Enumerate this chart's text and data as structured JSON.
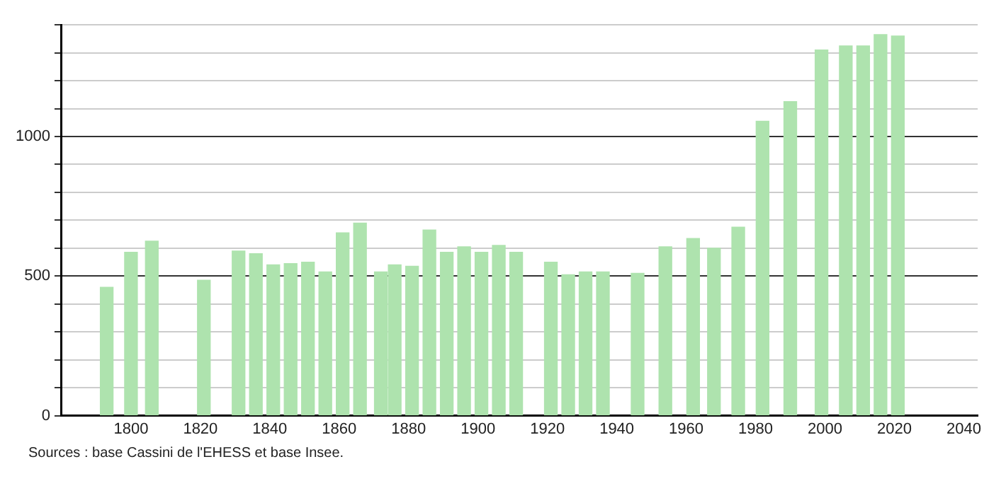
{
  "chart_data": {
    "type": "bar",
    "x": [
      1793,
      1800,
      1806,
      1821,
      1831,
      1836,
      1841,
      1846,
      1851,
      1856,
      1861,
      1866,
      1872,
      1876,
      1881,
      1886,
      1891,
      1896,
      1901,
      1906,
      1911,
      1921,
      1926,
      1931,
      1936,
      1946,
      1954,
      1962,
      1968,
      1975,
      1982,
      1990,
      1999,
      2006,
      2011,
      2016,
      2021
    ],
    "values": [
      460,
      585,
      625,
      485,
      590,
      580,
      540,
      545,
      550,
      515,
      655,
      690,
      515,
      540,
      535,
      665,
      585,
      605,
      585,
      610,
      585,
      550,
      505,
      515,
      515,
      510,
      605,
      635,
      600,
      675,
      1055,
      1125,
      1310,
      1325,
      1325,
      1365,
      1360
    ],
    "color": "#aee3ae",
    "xlim": [
      1780,
      2044
    ],
    "xticks": [
      1800,
      1820,
      1840,
      1860,
      1880,
      1900,
      1920,
      1940,
      1960,
      1980,
      2000,
      2020,
      2040
    ],
    "ylim": [
      0,
      1400
    ],
    "yticks": [
      0,
      {
        "value": 100,
        "label": null
      },
      {
        "value": 200,
        "label": null
      },
      {
        "value": 300,
        "label": null
      },
      {
        "value": 400,
        "label": null
      },
      500,
      {
        "value": 600,
        "label": null
      },
      {
        "value": 700,
        "label": null
      },
      {
        "value": 800,
        "label": null
      },
      {
        "value": 900,
        "label": null
      },
      1000,
      {
        "value": 1100,
        "label": null
      },
      {
        "value": 1200,
        "label": null
      },
      {
        "value": 1300,
        "label": null
      },
      {
        "value": 1400,
        "label": null
      }
    ],
    "grid": "y",
    "legend": false,
    "annotations": [
      "Sources : base Cassini de l'EHESS et base Insee."
    ]
  }
}
